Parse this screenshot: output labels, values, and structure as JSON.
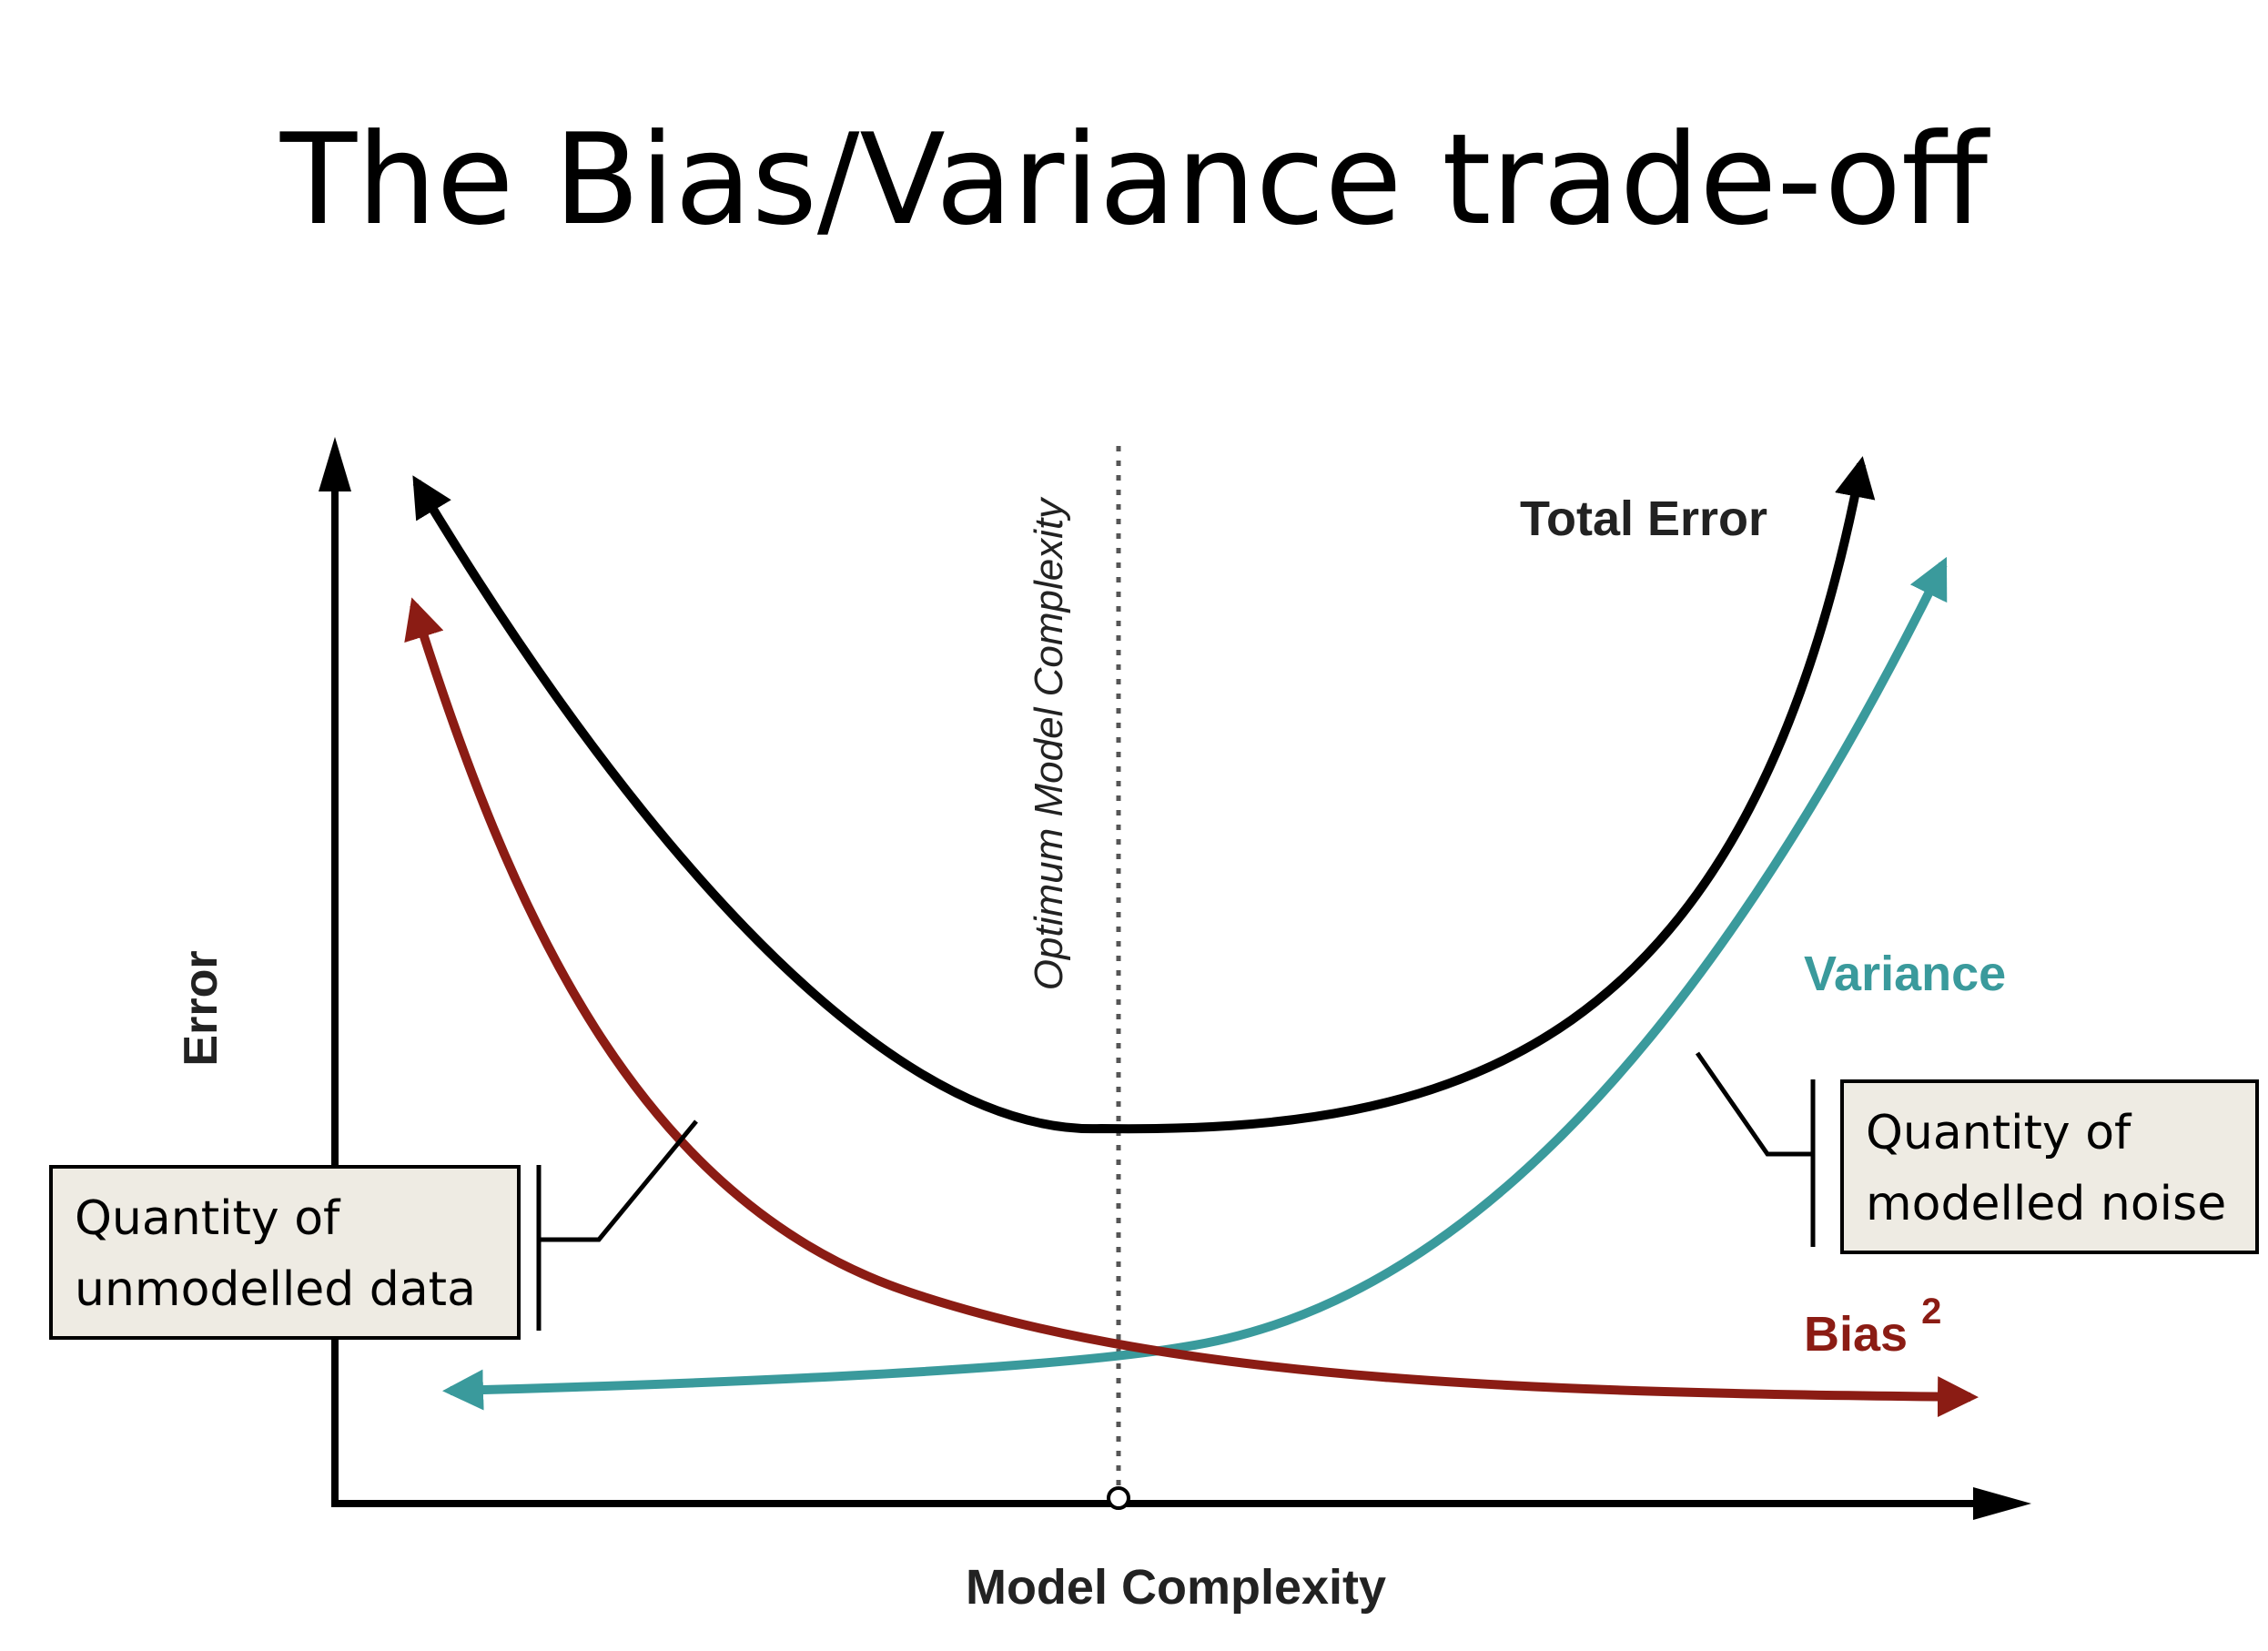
{
  "title": "The Bias/Variance trade-off",
  "axes": {
    "x_label": "Model Complexity",
    "y_label": "Error"
  },
  "curves": {
    "total_error": {
      "label": "Total Error",
      "color": "#000000"
    },
    "variance": {
      "label": "Variance",
      "color": "#3a9a9c"
    },
    "bias": {
      "label": "Bias",
      "superscript": "2",
      "color": "#8b1c14"
    }
  },
  "optimum_line": {
    "label": "Optimum Model Complexity"
  },
  "callouts": {
    "unmodelled": {
      "line1": "Quantity of",
      "line2": "unmodelled data"
    },
    "noise": {
      "line1": "Quantity of",
      "line2": "modelled noise"
    }
  }
}
